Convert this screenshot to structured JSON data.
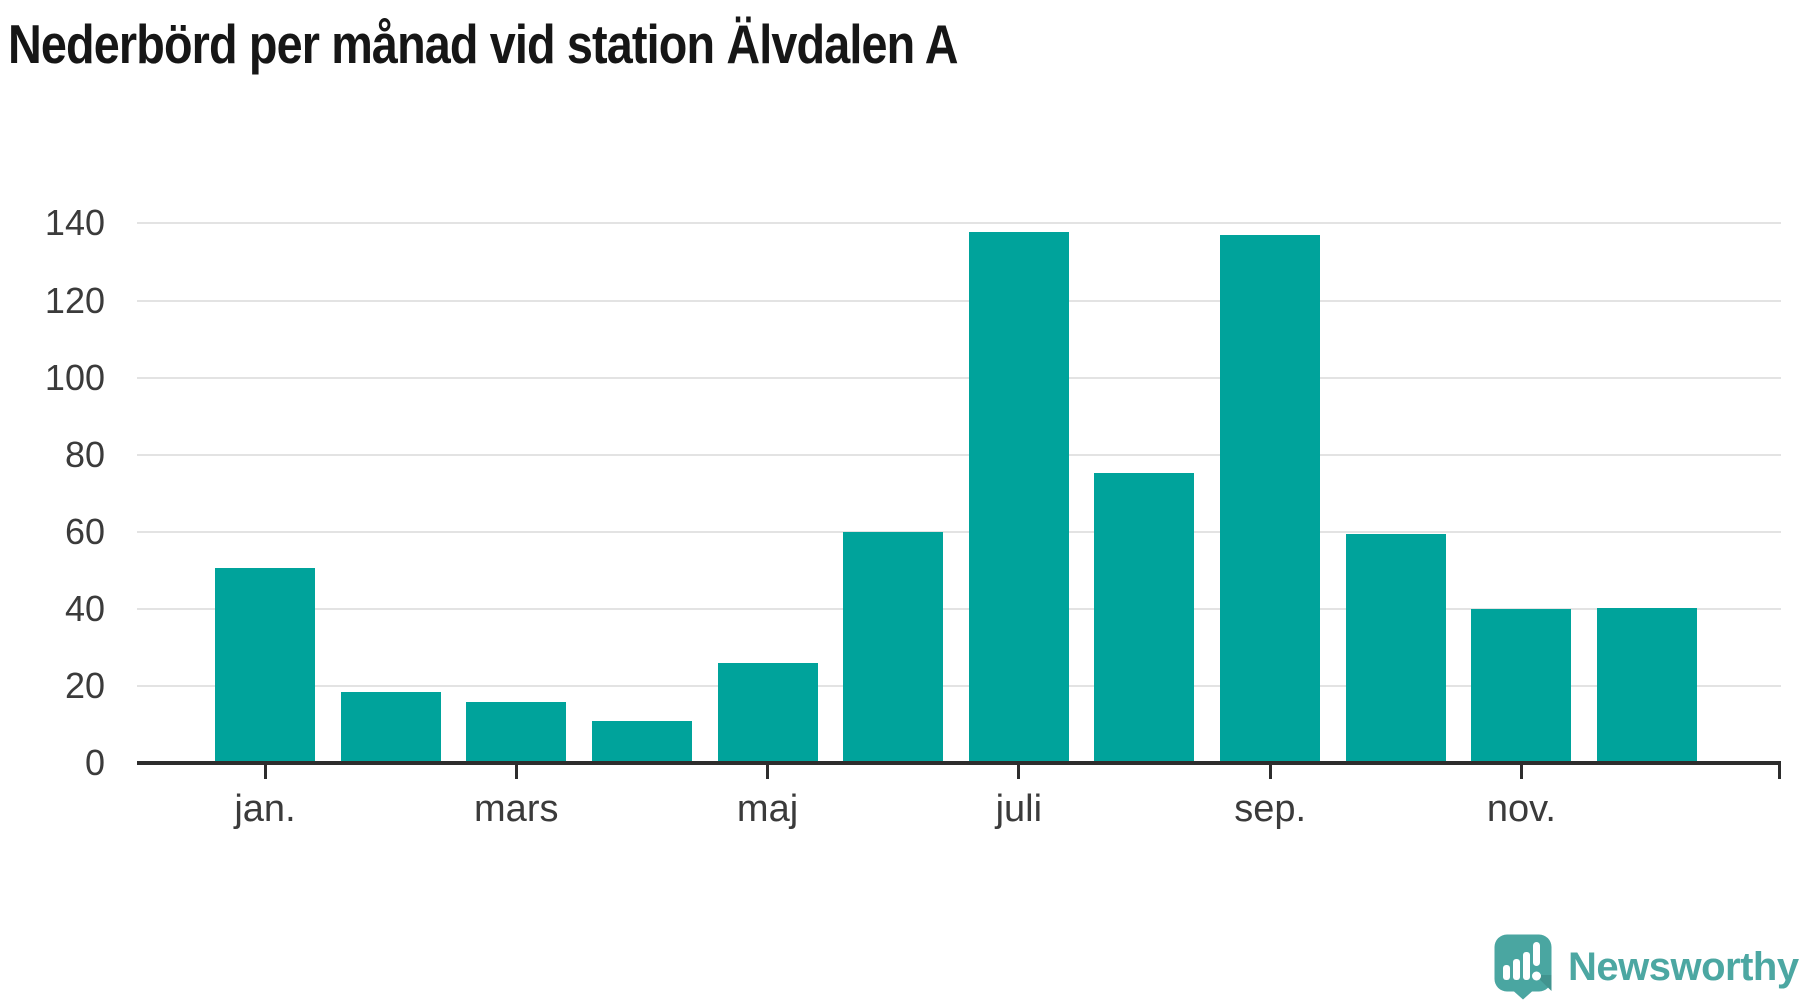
{
  "footer": {
    "brand": "Newsworthy"
  },
  "chart_data": {
    "type": "bar",
    "title": "Nederbörd per månad vid station Älvdalen A",
    "values": [
      50.5,
      18.4,
      15.8,
      11,
      25.9,
      60,
      137.8,
      75.2,
      137,
      59.4,
      39.9,
      40.2
    ],
    "x_tick_labels": [
      "jan.",
      "mars",
      "maj",
      "juli",
      "sep.",
      "nov."
    ],
    "x_tick_bar_indexes": [
      0,
      2,
      4,
      6,
      8,
      10
    ],
    "y_ticks": [
      0,
      20,
      40,
      60,
      80,
      100,
      120,
      140
    ],
    "ylim": [
      0,
      150
    ],
    "bar_color": "#00a39b",
    "grid": "horizontal",
    "legend": "none"
  }
}
